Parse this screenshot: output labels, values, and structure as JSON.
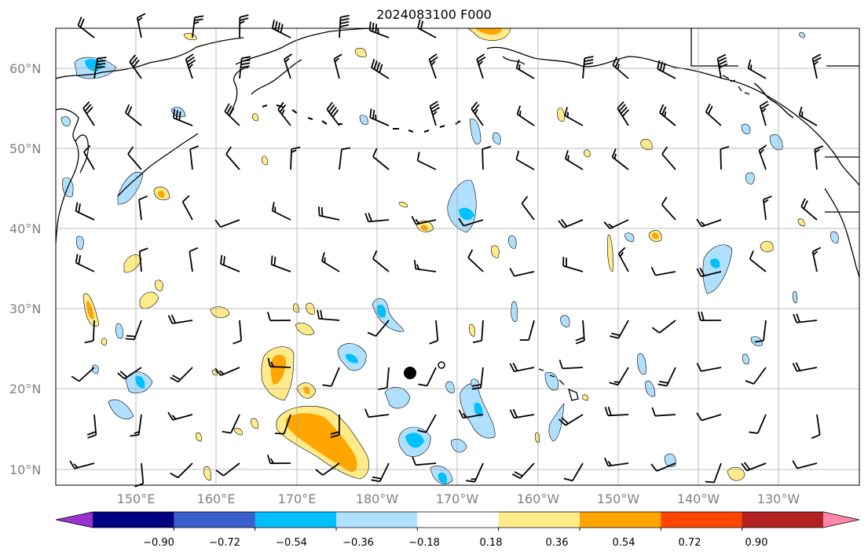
{
  "title": "2024083100 F000",
  "latitude_labels": [
    "60°N",
    "50°N",
    "40°N",
    "30°N",
    "20°N",
    "10°N"
  ],
  "longitude_labels": [
    "150°E",
    "160°E",
    "170°E",
    "180°W",
    "170°W",
    "160°W",
    "150°W",
    "140°W",
    "130°W"
  ],
  "colorbar": {
    "ticks": [
      "−0.90",
      "−0.72",
      "−0.54",
      "−0.36",
      "−0.18",
      "0.18",
      "0.36",
      "0.54",
      "0.72",
      "0.90"
    ],
    "colors": [
      "#9933cc",
      "#000080",
      "#3a5fcd",
      "#00bfff",
      "#b0e0ff",
      "#ffffff",
      "#ffeb8a",
      "#ffa500",
      "#ff4500",
      "#b22222",
      "#ff88aa"
    ]
  },
  "palette": {
    "land_outline": "#000000",
    "gridline": "#a0a0a0",
    "axis_label": "#808080"
  }
}
